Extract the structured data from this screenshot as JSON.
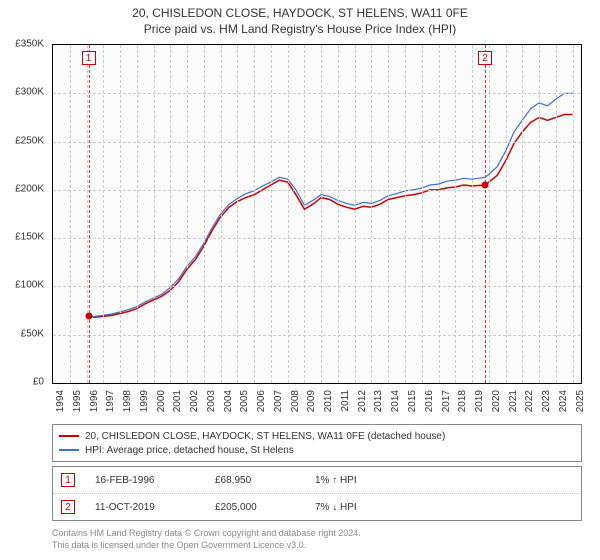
{
  "title": "20, CHISLEDON CLOSE, HAYDOCK, ST HELENS, WA11 0FE",
  "subtitle": "Price paid vs. HM Land Registry's House Price Index (HPI)",
  "chart": {
    "type": "line",
    "background_color": "#fbfbfb",
    "grid_color": "#cccccc",
    "border_color": "#000000",
    "x_years": [
      1994,
      1995,
      1996,
      1997,
      1998,
      1999,
      2000,
      2001,
      2002,
      2003,
      2004,
      2005,
      2006,
      2007,
      2008,
      2009,
      2010,
      2011,
      2012,
      2013,
      2014,
      2015,
      2016,
      2017,
      2018,
      2019,
      2020,
      2021,
      2022,
      2023,
      2024,
      2025
    ],
    "y_ticks": [
      0,
      50000,
      100000,
      150000,
      200000,
      250000,
      300000,
      350000
    ],
    "y_tick_labels": [
      "£0",
      "£50K",
      "£100K",
      "£150K",
      "£200K",
      "£250K",
      "£300K",
      "£350K"
    ],
    "ylim": [
      0,
      350000
    ],
    "xlim": [
      1994,
      2025.5
    ],
    "series": [
      {
        "name": "price_paid",
        "label": "20, CHISLEDON CLOSE, HAYDOCK, ST HELENS, WA11 0FE (detached house)",
        "color": "#cc0000",
        "line_width": 1.5,
        "points": [
          [
            1996.12,
            68950
          ],
          [
            1996.5,
            68000
          ],
          [
            1997,
            69000
          ],
          [
            1997.5,
            70000
          ],
          [
            1998,
            72000
          ],
          [
            1998.5,
            74000
          ],
          [
            1999,
            77000
          ],
          [
            1999.5,
            82000
          ],
          [
            2000,
            86000
          ],
          [
            2000.5,
            90000
          ],
          [
            2001,
            96000
          ],
          [
            2001.5,
            105000
          ],
          [
            2002,
            118000
          ],
          [
            2002.5,
            128000
          ],
          [
            2003,
            142000
          ],
          [
            2003.5,
            158000
          ],
          [
            2004,
            172000
          ],
          [
            2004.5,
            182000
          ],
          [
            2005,
            188000
          ],
          [
            2005.5,
            192000
          ],
          [
            2006,
            195000
          ],
          [
            2006.5,
            200000
          ],
          [
            2007,
            205000
          ],
          [
            2007.5,
            210000
          ],
          [
            2008,
            208000
          ],
          [
            2008.5,
            195000
          ],
          [
            2009,
            180000
          ],
          [
            2009.5,
            185000
          ],
          [
            2010,
            192000
          ],
          [
            2010.5,
            190000
          ],
          [
            2011,
            185000
          ],
          [
            2011.5,
            182000
          ],
          [
            2012,
            180000
          ],
          [
            2012.5,
            183000
          ],
          [
            2013,
            182000
          ],
          [
            2013.5,
            185000
          ],
          [
            2014,
            190000
          ],
          [
            2014.5,
            192000
          ],
          [
            2015,
            194000
          ],
          [
            2015.5,
            195000
          ],
          [
            2016,
            197000
          ],
          [
            2016.5,
            200000
          ],
          [
            2017,
            200000
          ],
          [
            2017.5,
            202000
          ],
          [
            2018,
            203000
          ],
          [
            2018.5,
            205000
          ],
          [
            2019,
            204000
          ],
          [
            2019.78,
            205000
          ],
          [
            2020,
            208000
          ],
          [
            2020.5,
            215000
          ],
          [
            2021,
            230000
          ],
          [
            2021.5,
            248000
          ],
          [
            2022,
            260000
          ],
          [
            2022.5,
            270000
          ],
          [
            2023,
            275000
          ],
          [
            2023.5,
            272000
          ],
          [
            2024,
            275000
          ],
          [
            2024.5,
            278000
          ],
          [
            2025,
            278000
          ]
        ]
      },
      {
        "name": "hpi",
        "label": "HPI: Average price, detached house, St Helens",
        "color": "#3b6fd4",
        "line_width": 1.2,
        "points": [
          [
            1996.12,
            68000
          ],
          [
            1996.5,
            69000
          ],
          [
            1997,
            70000
          ],
          [
            1997.5,
            71500
          ],
          [
            1998,
            73500
          ],
          [
            1998.5,
            76000
          ],
          [
            1999,
            79000
          ],
          [
            1999.5,
            84000
          ],
          [
            2000,
            88000
          ],
          [
            2000.5,
            92000
          ],
          [
            2001,
            99000
          ],
          [
            2001.5,
            108000
          ],
          [
            2002,
            121000
          ],
          [
            2002.5,
            131000
          ],
          [
            2003,
            145000
          ],
          [
            2003.5,
            161000
          ],
          [
            2004,
            175000
          ],
          [
            2004.5,
            185000
          ],
          [
            2005,
            191000
          ],
          [
            2005.5,
            196000
          ],
          [
            2006,
            199000
          ],
          [
            2006.5,
            204000
          ],
          [
            2007,
            208000
          ],
          [
            2007.5,
            213000
          ],
          [
            2008,
            211000
          ],
          [
            2008.5,
            200000
          ],
          [
            2009,
            184000
          ],
          [
            2009.5,
            189000
          ],
          [
            2010,
            195000
          ],
          [
            2010.5,
            193000
          ],
          [
            2011,
            189000
          ],
          [
            2011.5,
            186000
          ],
          [
            2012,
            184000
          ],
          [
            2012.5,
            187000
          ],
          [
            2013,
            186000
          ],
          [
            2013.5,
            189000
          ],
          [
            2014,
            194000
          ],
          [
            2014.5,
            196000
          ],
          [
            2015,
            199000
          ],
          [
            2015.5,
            200000
          ],
          [
            2016,
            202000
          ],
          [
            2016.5,
            205000
          ],
          [
            2017,
            206000
          ],
          [
            2017.5,
            209000
          ],
          [
            2018,
            210000
          ],
          [
            2018.5,
            212000
          ],
          [
            2019,
            211000
          ],
          [
            2019.78,
            213000
          ],
          [
            2020,
            216000
          ],
          [
            2020.5,
            224000
          ],
          [
            2021,
            240000
          ],
          [
            2021.5,
            260000
          ],
          [
            2022,
            272000
          ],
          [
            2022.5,
            284000
          ],
          [
            2023,
            290000
          ],
          [
            2023.5,
            287000
          ],
          [
            2024,
            294000
          ],
          [
            2024.5,
            300000
          ],
          [
            2025,
            300000
          ]
        ]
      }
    ],
    "event_lines": [
      {
        "id": "1",
        "x": 1996.12,
        "dot_y": 68950,
        "dot_color": "#cc0000"
      },
      {
        "id": "2",
        "x": 2019.78,
        "dot_y": 205000,
        "dot_color": "#cc0000"
      }
    ],
    "event_line_color": "#e03030",
    "event_box_border": "#cc0000"
  },
  "legend": {
    "items": [
      {
        "color": "#cc0000",
        "label": "20, CHISLEDON CLOSE, HAYDOCK, ST HELENS, WA11 0FE (detached house)"
      },
      {
        "color": "#3b6fd4",
        "label": "HPI: Average price, detached house, St Helens"
      }
    ]
  },
  "events": [
    {
      "id": "1",
      "date": "16-FEB-1996",
      "price": "£68,950",
      "diff": "1% ↑ HPI"
    },
    {
      "id": "2",
      "date": "11-OCT-2019",
      "price": "£205,000",
      "diff": "7% ↓ HPI"
    }
  ],
  "footnote_line1": "Contains HM Land Registry data © Crown copyright and database right 2024.",
  "footnote_line2": "This data is licensed under the Open Government Licence v3.0."
}
